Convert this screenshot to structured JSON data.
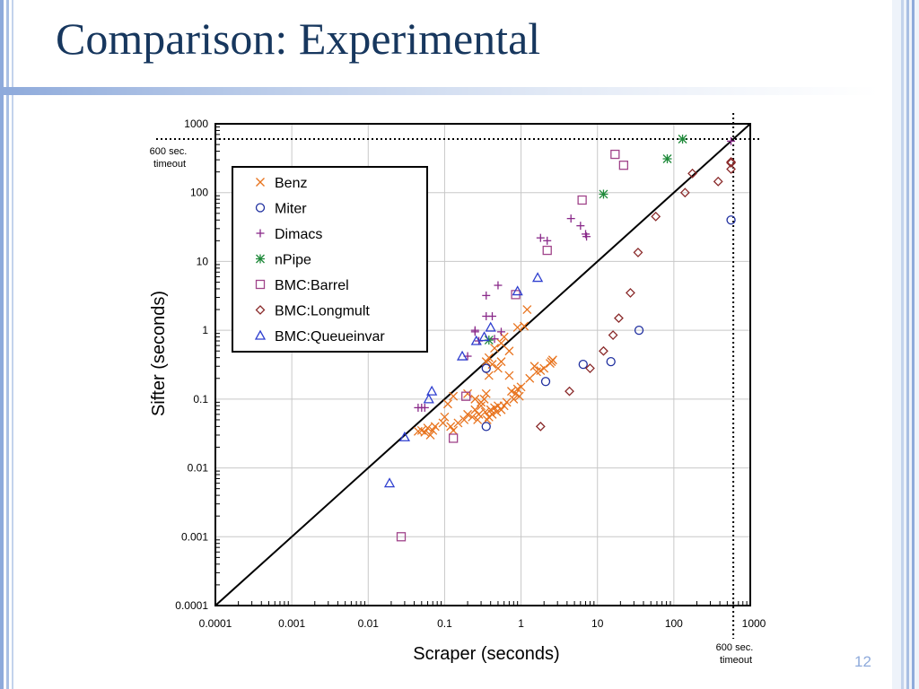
{
  "slide": {
    "title": "Comparison: Experimental",
    "page_number": "12",
    "colors": {
      "title": "#17375e",
      "stripe": "#8eaadb",
      "page_number": "#8eaadb"
    }
  },
  "chart_data": {
    "type": "scatter",
    "xlabel": "Scraper (seconds)",
    "ylabel": "Sifter (seconds)",
    "xscale": "log",
    "yscale": "log",
    "xlim": [
      0.0001,
      1000
    ],
    "ylim": [
      0.0001,
      1000
    ],
    "grid": true,
    "legend_placement": "top-left",
    "x_ticks": [
      "0.0001",
      "0.001",
      "0.01",
      "0.1",
      "1",
      "10",
      "100",
      "1000"
    ],
    "y_ticks": [
      "0.0001",
      "0.001",
      "0.01",
      "0.1",
      "1",
      "10",
      "100",
      "1000"
    ],
    "diagonal": {
      "from": [
        0.0001,
        0.0001
      ],
      "to": [
        1000,
        1000
      ]
    },
    "timeout": {
      "value": 600,
      "x_label": "600 sec. timeout",
      "y_label": "600 sec. timeout"
    },
    "series": [
      {
        "name": "Benz",
        "marker": "x",
        "color": "#e8741f",
        "points": [
          [
            1.2,
            2.0
          ],
          [
            0.9,
            1.1
          ],
          [
            1.1,
            1.15
          ],
          [
            0.55,
            0.65
          ],
          [
            0.6,
            0.8
          ],
          [
            0.7,
            0.5
          ],
          [
            0.45,
            0.55
          ],
          [
            0.35,
            0.35
          ],
          [
            0.38,
            0.4
          ],
          [
            0.42,
            0.32
          ],
          [
            0.55,
            0.35
          ],
          [
            0.5,
            0.28
          ],
          [
            0.38,
            0.22
          ],
          [
            0.7,
            0.22
          ],
          [
            1.0,
            0.15
          ],
          [
            1.3,
            0.2
          ],
          [
            1.5,
            0.3
          ],
          [
            1.6,
            0.25
          ],
          [
            1.8,
            0.26
          ],
          [
            2.0,
            0.28
          ],
          [
            2.5,
            0.35
          ],
          [
            2.6,
            0.37
          ],
          [
            2.4,
            0.33
          ],
          [
            0.75,
            0.13
          ],
          [
            0.85,
            0.12
          ],
          [
            0.9,
            0.14
          ],
          [
            0.95,
            0.11
          ],
          [
            0.8,
            0.1
          ],
          [
            0.65,
            0.09
          ],
          [
            0.6,
            0.08
          ],
          [
            0.55,
            0.07
          ],
          [
            0.5,
            0.08
          ],
          [
            0.48,
            0.065
          ],
          [
            0.45,
            0.075
          ],
          [
            0.42,
            0.06
          ],
          [
            0.4,
            0.07
          ],
          [
            0.38,
            0.055
          ],
          [
            0.36,
            0.05
          ],
          [
            0.34,
            0.065
          ],
          [
            0.33,
            0.1
          ],
          [
            0.3,
            0.08
          ],
          [
            0.28,
            0.06
          ],
          [
            0.27,
            0.05
          ],
          [
            0.25,
            0.07
          ],
          [
            0.23,
            0.055
          ],
          [
            0.2,
            0.06
          ],
          [
            0.18,
            0.05
          ],
          [
            0.15,
            0.045
          ],
          [
            0.13,
            0.035
          ],
          [
            0.12,
            0.04
          ],
          [
            0.1,
            0.055
          ],
          [
            0.095,
            0.045
          ],
          [
            0.075,
            0.04
          ],
          [
            0.07,
            0.035
          ],
          [
            0.065,
            0.03
          ],
          [
            0.06,
            0.038
          ],
          [
            0.055,
            0.033
          ],
          [
            0.05,
            0.035
          ],
          [
            0.045,
            0.034
          ],
          [
            0.13,
            0.11
          ],
          [
            0.11,
            0.085
          ],
          [
            0.2,
            0.12
          ],
          [
            0.25,
            0.1
          ],
          [
            0.3,
            0.09
          ],
          [
            0.35,
            0.12
          ]
        ]
      },
      {
        "name": "Miter",
        "marker": "circle",
        "color": "#1f2f9f",
        "points": [
          [
            560,
            40
          ],
          [
            35,
            1.0
          ],
          [
            15,
            0.35
          ],
          [
            6.5,
            0.32
          ],
          [
            2.1,
            0.18
          ],
          [
            0.35,
            0.28
          ],
          [
            0.35,
            0.04
          ]
        ]
      },
      {
        "name": "Dimacs",
        "marker": "plus",
        "color": "#8a2a8a",
        "points": [
          [
            560,
            560
          ],
          [
            4.5,
            42
          ],
          [
            6.0,
            33
          ],
          [
            7.0,
            25
          ],
          [
            7.2,
            23
          ],
          [
            1.8,
            22
          ],
          [
            2.2,
            20
          ],
          [
            0.5,
            4.5
          ],
          [
            0.35,
            3.2
          ],
          [
            0.35,
            1.6
          ],
          [
            0.42,
            1.6
          ],
          [
            0.25,
            1.0
          ],
          [
            0.25,
            0.95
          ],
          [
            0.55,
            0.95
          ],
          [
            0.45,
            0.75
          ],
          [
            0.28,
            0.7
          ],
          [
            0.2,
            0.42
          ],
          [
            0.045,
            0.075
          ],
          [
            0.05,
            0.075
          ],
          [
            0.055,
            0.075
          ]
        ]
      },
      {
        "name": "nPipe",
        "marker": "asterisk",
        "color": "#1f8a3a",
        "points": [
          [
            130,
            600
          ],
          [
            82,
            310
          ],
          [
            12,
            95
          ],
          [
            0.38,
            0.72
          ]
        ]
      },
      {
        "name": "BMC:Barrel",
        "marker": "square",
        "color": "#a0448a",
        "points": [
          [
            17,
            360
          ],
          [
            22,
            250
          ],
          [
            6.3,
            78
          ],
          [
            2.2,
            14.5
          ],
          [
            0.85,
            3.3
          ],
          [
            0.19,
            0.11
          ],
          [
            0.13,
            0.027
          ],
          [
            0.027,
            0.001
          ]
        ]
      },
      {
        "name": "BMC:Longmult",
        "marker": "diamond",
        "color": "#8a2a2a",
        "points": [
          [
            560,
            280
          ],
          [
            560,
            270
          ],
          [
            560,
            220
          ],
          [
            175,
            190
          ],
          [
            140,
            100
          ],
          [
            380,
            145
          ],
          [
            58,
            45
          ],
          [
            34,
            13.5
          ],
          [
            27,
            3.5
          ],
          [
            19,
            1.5
          ],
          [
            16,
            0.85
          ],
          [
            12,
            0.5
          ],
          [
            8,
            0.28
          ],
          [
            4.3,
            0.13
          ],
          [
            1.8,
            0.04
          ]
        ]
      },
      {
        "name": "BMC:Queueinvar",
        "marker": "triangle",
        "color": "#2f3fcf",
        "points": [
          [
            1.65,
            5.8
          ],
          [
            0.9,
            3.7
          ],
          [
            0.4,
            1.1
          ],
          [
            0.33,
            0.8
          ],
          [
            0.26,
            0.7
          ],
          [
            0.17,
            0.42
          ],
          [
            0.068,
            0.13
          ],
          [
            0.062,
            0.1
          ],
          [
            0.03,
            0.028
          ],
          [
            0.019,
            0.006
          ]
        ]
      }
    ]
  }
}
